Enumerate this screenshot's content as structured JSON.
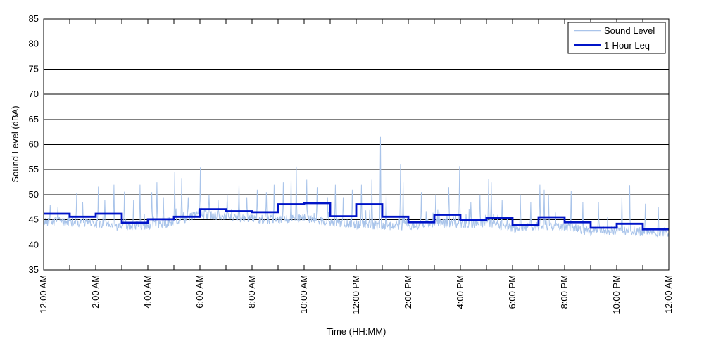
{
  "chart_data": {
    "type": "line",
    "title": "",
    "xlabel": "Time (HH:MM)",
    "ylabel": "Sound Level (dBA)",
    "ylim": [
      35,
      85
    ],
    "xlim_hours": [
      0,
      24
    ],
    "grid": "horizontal",
    "y_ticks": [
      35,
      40,
      45,
      50,
      55,
      60,
      65,
      70,
      75,
      80,
      85
    ],
    "x_tick_hours": [
      0,
      2,
      4,
      6,
      8,
      10,
      12,
      14,
      16,
      18,
      20,
      22,
      24
    ],
    "x_tick_labels": [
      "12:00 AM",
      "2:00 AM",
      "4:00 AM",
      "6:00 AM",
      "8:00 AM",
      "10:00 AM",
      "12:00 PM",
      "2:00 PM",
      "4:00 PM",
      "6:00 PM",
      "8:00 PM",
      "10:00 PM",
      "12:00 AM"
    ],
    "x_minor_tick_every_hours": 1,
    "legend": {
      "position": "top-right",
      "entries": [
        {
          "label": "Sound Level",
          "color": "#a9c4ea",
          "line_width": 1.2
        },
        {
          "label": "1-Hour Leq",
          "color": "#0014c8",
          "line_width": 3
        }
      ]
    },
    "series": [
      {
        "name": "Sound Level",
        "style": "noisy-line",
        "color": "#a9c4ea",
        "sample_minutes": 1,
        "noise_db": 0.9,
        "baseline_by_hour": [
          44.7,
          44.5,
          44.3,
          43.6,
          44.0,
          44.4,
          46.2,
          45.7,
          45.2,
          44.9,
          45.4,
          44.3,
          44.1,
          43.8,
          43.7,
          44.4,
          44.2,
          44.4,
          43.3,
          43.8,
          43.6,
          42.7,
          42.9,
          42.5
        ],
        "spikes": [
          [
            0.25,
            48.0
          ],
          [
            0.55,
            47.6
          ],
          [
            1.27,
            50.4
          ],
          [
            1.5,
            48.5
          ],
          [
            2.1,
            51.6
          ],
          [
            2.35,
            49.0
          ],
          [
            2.7,
            52.0
          ],
          [
            3.1,
            50.6
          ],
          [
            3.45,
            49.0
          ],
          [
            3.7,
            52.0
          ],
          [
            4.15,
            50.5
          ],
          [
            4.35,
            52.5
          ],
          [
            4.6,
            49.5
          ],
          [
            5.03,
            54.5
          ],
          [
            5.3,
            53.3
          ],
          [
            5.55,
            49.5
          ],
          [
            6.02,
            55.4
          ],
          [
            6.35,
            50.0
          ],
          [
            6.7,
            49.0
          ],
          [
            7.05,
            50.0
          ],
          [
            7.5,
            52.0
          ],
          [
            7.8,
            49.5
          ],
          [
            8.2,
            51.0
          ],
          [
            8.55,
            50.5
          ],
          [
            8.85,
            52.0
          ],
          [
            9.2,
            52.5
          ],
          [
            9.5,
            53.0
          ],
          [
            9.7,
            55.6
          ],
          [
            10.1,
            53.0
          ],
          [
            10.5,
            51.5
          ],
          [
            10.9,
            49.5
          ],
          [
            11.2,
            52.0
          ],
          [
            11.5,
            49.5
          ],
          [
            11.85,
            51.0
          ],
          [
            12.2,
            52.0
          ],
          [
            12.6,
            53.0
          ],
          [
            12.94,
            61.5
          ],
          [
            13.15,
            50.0
          ],
          [
            13.7,
            56.0
          ],
          [
            13.8,
            52.5
          ],
          [
            14.5,
            50.5
          ],
          [
            15.05,
            50.0
          ],
          [
            15.55,
            51.5
          ],
          [
            15.96,
            55.7
          ],
          [
            16.4,
            48.5
          ],
          [
            16.75,
            50.0
          ],
          [
            17.08,
            53.2
          ],
          [
            17.18,
            52.5
          ],
          [
            17.6,
            49.0
          ],
          [
            18.3,
            50.0
          ],
          [
            18.7,
            48.5
          ],
          [
            19.05,
            52.0
          ],
          [
            19.22,
            51.0
          ],
          [
            19.38,
            50.0
          ],
          [
            20.25,
            50.7
          ],
          [
            20.7,
            48.5
          ],
          [
            21.3,
            48.5
          ],
          [
            22.2,
            49.5
          ],
          [
            22.5,
            51.9
          ],
          [
            23.1,
            48.2
          ],
          [
            23.6,
            47.5
          ]
        ]
      },
      {
        "name": "1-Hour Leq",
        "style": "step",
        "color": "#0014c8",
        "hourly_leq": [
          46.2,
          45.6,
          46.2,
          44.4,
          45.1,
          45.6,
          47.1,
          46.7,
          46.5,
          48.1,
          48.3,
          45.7,
          48.1,
          45.6,
          44.5,
          46.0,
          45.0,
          45.4,
          44.0,
          45.5,
          44.5,
          43.4,
          44.2,
          43.1
        ]
      }
    ]
  }
}
